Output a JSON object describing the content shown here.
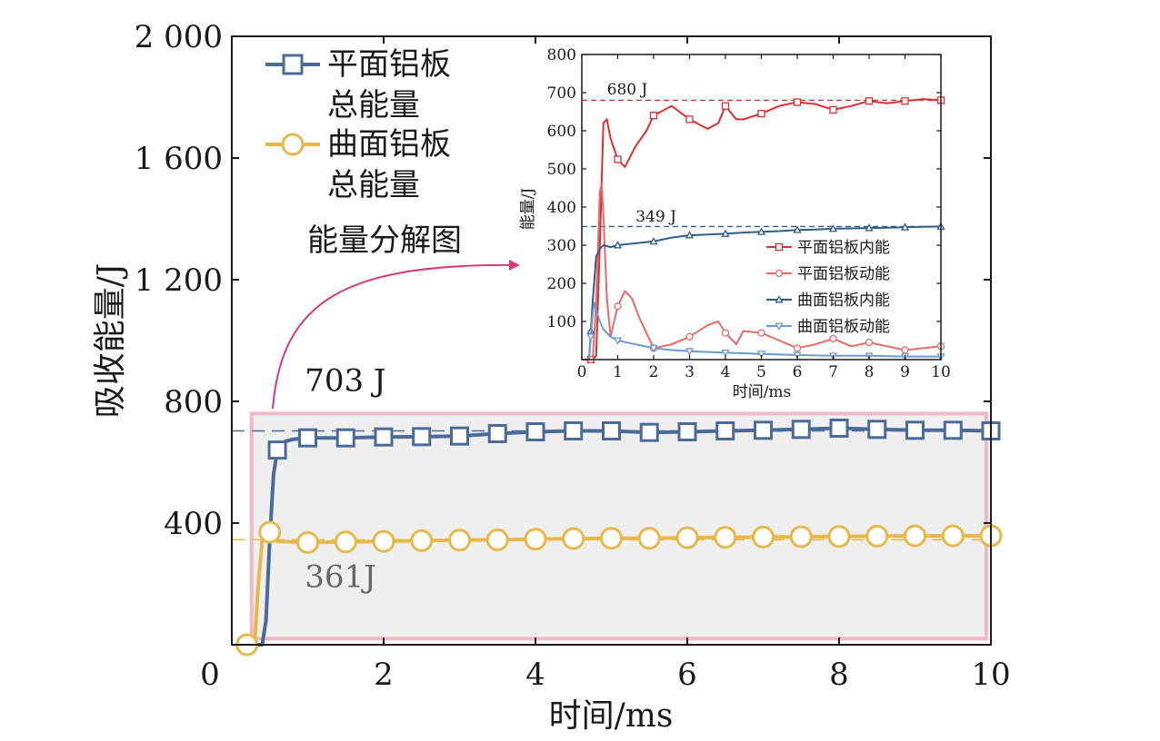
{
  "chart_data": [
    {
      "type": "line",
      "xlabel": "时间/ms",
      "ylabel": "吸收能量/J",
      "xlim": [
        0,
        10
      ],
      "ylim": [
        0,
        2000
      ],
      "xticks": [
        "0",
        "2",
        "4",
        "6",
        "8",
        "10"
      ],
      "yticks": [
        "400",
        "800",
        "1 200",
        "1 600",
        "2 000"
      ],
      "legend": {
        "placement": "top-left"
      },
      "series": [
        {
          "name": "平面铝板总能量",
          "name_lines": [
            "平面铝板",
            "总能量"
          ],
          "color": "#4a6a9a",
          "marker": "square",
          "x": [
            0.2,
            0.3,
            0.4,
            0.45,
            0.5,
            0.55,
            0.6,
            0.7,
            0.8,
            1.0,
            1.5,
            2.0,
            2.5,
            3.0,
            3.5,
            4.0,
            4.5,
            5.0,
            5.5,
            6.0,
            6.5,
            7.0,
            7.5,
            8.0,
            8.5,
            9.0,
            9.5,
            10.0
          ],
          "y": [
            0,
            0,
            0,
            80,
            350,
            560,
            640,
            668,
            675,
            680,
            680,
            683,
            684,
            686,
            694,
            700,
            703,
            703,
            698,
            700,
            703,
            705,
            708,
            712,
            708,
            705,
            705,
            703
          ],
          "marker_x": [
            0.6,
            1.0,
            1.5,
            2.0,
            2.5,
            3.0,
            3.5,
            4.0,
            4.5,
            5.0,
            5.5,
            6.0,
            6.5,
            7.0,
            7.5,
            8.0,
            8.5,
            9.0,
            9.5,
            10.0
          ]
        },
        {
          "name": "曲面铝板总能量",
          "name_lines": [
            "曲面铝板",
            "总能量"
          ],
          "color": "#e8b84a",
          "marker": "circle",
          "x": [
            0.2,
            0.3,
            0.35,
            0.4,
            0.45,
            0.5,
            0.55,
            0.6,
            0.8,
            1.0,
            1.5,
            2.0,
            2.5,
            3.0,
            3.5,
            4.0,
            4.5,
            5.0,
            5.5,
            6.0,
            6.5,
            7.0,
            7.5,
            8.0,
            8.5,
            9.0,
            9.5,
            10.0
          ],
          "y": [
            0,
            10,
            200,
            340,
            380,
            370,
            350,
            340,
            338,
            336,
            338,
            340,
            342,
            344,
            345,
            347,
            349,
            350,
            350,
            352,
            353,
            354,
            355,
            356,
            357,
            358,
            358,
            358
          ],
          "marker_x": [
            0.2,
            0.5,
            1.0,
            1.5,
            2.0,
            2.5,
            3.0,
            3.5,
            4.0,
            4.5,
            5.0,
            5.5,
            6.0,
            6.5,
            7.0,
            7.5,
            8.0,
            8.5,
            9.0,
            9.5,
            10.0
          ]
        }
      ],
      "annotations": [
        {
          "text": "703 J",
          "x": 1.2,
          "y": 840,
          "color": "#1a1a1a"
        },
        {
          "text": "361J",
          "x": 1.2,
          "y": 225,
          "color": "#666666"
        }
      ],
      "reference_lines": [
        {
          "y": 703,
          "color": "#4a6a9a",
          "dash": true
        },
        {
          "y": 345,
          "color": "#e8b84a",
          "dash": true
        }
      ],
      "highlight_box": {
        "x0": 0.32,
        "x1": 10.0,
        "y0": 20,
        "y1": 760,
        "fill": "#efefef",
        "stroke": "#f2b8c6"
      },
      "callout": {
        "text": "能量分解图",
        "color": "#d63b7a"
      }
    },
    {
      "type": "line",
      "xlabel": "时间/ms",
      "ylabel": "能量/J",
      "xlim": [
        0,
        10
      ],
      "ylim": [
        0,
        800
      ],
      "xticks": [
        "0",
        "1",
        "2",
        "3",
        "4",
        "5",
        "6",
        "7",
        "8",
        "9",
        "10"
      ],
      "yticks": [
        "100",
        "200",
        "300",
        "400",
        "500",
        "600",
        "700",
        "800"
      ],
      "legend": {
        "placement": "right"
      },
      "series": [
        {
          "name": "平面铝板内能",
          "color": "#d93030",
          "marker": "square",
          "x": [
            0,
            0.3,
            0.4,
            0.5,
            0.6,
            0.7,
            0.8,
            1.0,
            1.2,
            1.5,
            1.8,
            2.0,
            2.5,
            3.0,
            3.5,
            3.8,
            4.0,
            4.3,
            4.5,
            5.0,
            5.5,
            6.0,
            6.5,
            7.0,
            7.5,
            8.0,
            8.5,
            9.0,
            9.5,
            10.0
          ],
          "y": [
            0,
            0,
            10,
            300,
            620,
            630,
            580,
            525,
            505,
            560,
            600,
            640,
            665,
            630,
            605,
            620,
            665,
            630,
            630,
            645,
            665,
            675,
            670,
            655,
            665,
            678,
            672,
            678,
            683,
            680
          ],
          "marker_x": [
            0.25,
            1.0,
            2.0,
            3.0,
            4.0,
            5.0,
            6.0,
            7.0,
            8.0,
            9.0,
            10.0
          ]
        },
        {
          "name": "平面铝板动能",
          "color": "#e86a6a",
          "marker": "circle",
          "x": [
            0,
            0.3,
            0.4,
            0.5,
            0.55,
            0.6,
            0.7,
            0.8,
            1.0,
            1.2,
            1.4,
            1.6,
            1.8,
            2.0,
            2.5,
            3.0,
            3.5,
            3.8,
            4.0,
            4.3,
            4.5,
            5.0,
            5.5,
            6.0,
            6.5,
            7.0,
            7.5,
            8.0,
            8.5,
            9.0,
            9.5,
            10.0
          ],
          "y": [
            0,
            0,
            150,
            440,
            460,
            380,
            160,
            60,
            140,
            180,
            160,
            110,
            70,
            30,
            40,
            60,
            90,
            100,
            70,
            40,
            75,
            70,
            50,
            30,
            40,
            55,
            35,
            45,
            35,
            25,
            30,
            35
          ],
          "marker_x": [
            0.25,
            1.0,
            2.0,
            3.0,
            4.0,
            5.0,
            6.0,
            7.0,
            8.0,
            9.0,
            10.0
          ]
        },
        {
          "name": "曲面铝板内能",
          "color": "#2f5d8a",
          "marker": "triangle-up",
          "x": [
            0,
            0.2,
            0.3,
            0.4,
            0.5,
            0.6,
            0.8,
            1.0,
            1.5,
            2.0,
            2.5,
            3.0,
            3.5,
            4.0,
            4.5,
            5.0,
            5.5,
            6.0,
            6.5,
            7.0,
            7.5,
            8.0,
            8.5,
            9.0,
            9.5,
            10.0
          ],
          "y": [
            0,
            0,
            150,
            270,
            290,
            300,
            295,
            300,
            305,
            310,
            320,
            326,
            328,
            330,
            333,
            335,
            337,
            340,
            341,
            343,
            344,
            345,
            346,
            347,
            348,
            349
          ],
          "marker_x": [
            0.25,
            1.0,
            2.0,
            3.0,
            4.0,
            5.0,
            6.0,
            7.0,
            8.0,
            9.0,
            10.0
          ]
        },
        {
          "name": "曲面铝板动能",
          "color": "#6a9ad0",
          "marker": "triangle-down",
          "x": [
            0,
            0.2,
            0.3,
            0.35,
            0.4,
            0.5,
            0.6,
            0.8,
            1.0,
            1.5,
            2.0,
            2.5,
            3.0,
            3.5,
            4.0,
            5.0,
            6.0,
            7.0,
            8.0,
            9.0,
            10.0
          ],
          "y": [
            0,
            0,
            120,
            150,
            130,
            100,
            80,
            60,
            50,
            40,
            30,
            25,
            22,
            20,
            18,
            15,
            12,
            10,
            10,
            8,
            8
          ],
          "marker_x": [
            0.25,
            1.0,
            2.0,
            3.0,
            4.0,
            5.0,
            6.0,
            7.0,
            8.0,
            9.0,
            10.0
          ]
        }
      ],
      "annotations": [
        {
          "text": "680 J",
          "x": 0.7,
          "y": 705
        },
        {
          "text": "349 J",
          "x": 1.5,
          "y": 372
        }
      ],
      "reference_lines": [
        {
          "y": 680,
          "color": "#d93030",
          "dash": true
        },
        {
          "y": 349,
          "color": "#2f5d8a",
          "dash": true
        }
      ]
    }
  ]
}
